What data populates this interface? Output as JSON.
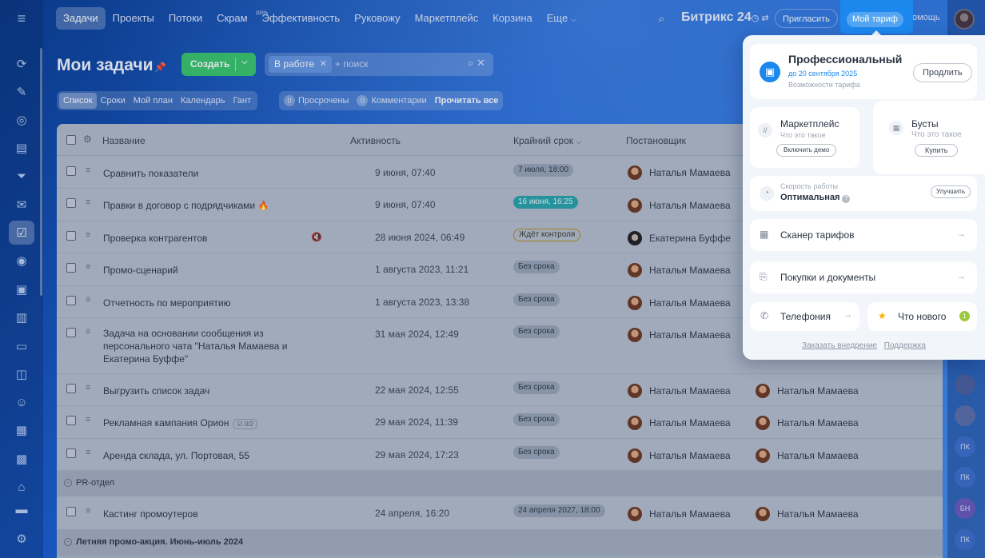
{
  "topnav": {
    "items": [
      "Задачи",
      "Проекты",
      "Потоки",
      "Скрам",
      "Эффективность",
      "Руковожу",
      "Маркетплейс",
      "Корзина",
      "Еще"
    ],
    "efficiency_badge": "100%",
    "brand": "Битрикс 24",
    "invite": "Пригласить",
    "tariff": "Мой тариф",
    "help": "омощь"
  },
  "page": {
    "title": "Мои задачи",
    "create": "Создать",
    "filter_chip": "В работе",
    "search_placeholder": "+ поиск"
  },
  "subtabs": [
    "Список",
    "Сроки",
    "Мой план",
    "Календарь",
    "Гант"
  ],
  "counters": {
    "overdue_count": "0",
    "overdue_label": "Просрочены",
    "comments_count": "0",
    "comments_label": "Комментарии",
    "read_all": "Прочитать все"
  },
  "table": {
    "headers": {
      "name": "Название",
      "activity": "Активность",
      "deadline": "Крайний срок",
      "creator": "Постановщик"
    },
    "rows": [
      {
        "name": "Сравнить показатели",
        "activity": "9 июня, 07:40",
        "deadline": "7 июля, 18:00",
        "creator": "Наталья Мамаева",
        "assignee": ""
      },
      {
        "name": "Правки в договор с подрядчиками",
        "activity": "9 июня, 07:40",
        "deadline": "16 июня, 16:25",
        "creator": "Наталья Мамаева",
        "assignee": ""
      },
      {
        "name": "Проверка контрагентов",
        "activity": "28 июня 2024, 06:49",
        "deadline": "Ждёт контроля",
        "creator": "Екатерина Буффе",
        "assignee": ""
      },
      {
        "name": "Промо-сценарий",
        "activity": "1 августа 2023, 11:21",
        "deadline": "Без срока",
        "creator": "Наталья Мамаева",
        "assignee": ""
      },
      {
        "name": "Отчетность по мероприятию",
        "activity": "1 августа 2023, 13:38",
        "deadline": "Без срока",
        "creator": "Наталья Мамаева",
        "assignee": ""
      },
      {
        "name": "Задача на основании сообщения из персонального чата \"Наталья Мамаева и Екатерина Буффе\"",
        "activity": "31 мая 2024, 12:49",
        "deadline": "Без срока",
        "creator": "Наталья Мамаева",
        "assignee": ""
      },
      {
        "name": "Выгрузить список задач",
        "activity": "22 мая 2024, 12:55",
        "deadline": "Без срока",
        "creator": "Наталья Мамаева",
        "assignee": "Наталья Мамаева"
      },
      {
        "name": "Рекламная кампания Орион",
        "activity": "29 мая 2024, 11:39",
        "deadline": "Без срока",
        "creator": "Наталья Мамаева",
        "assignee": "Наталья Мамаева",
        "checklist": "0/2"
      },
      {
        "name": "Аренда склада, ул. Портовая, 55",
        "activity": "29 мая 2024, 17:23",
        "deadline": "Без срока",
        "creator": "Наталья Мамаева",
        "assignee": "Наталья Мамаева"
      }
    ],
    "group1": "PR-отдел",
    "group1_row": {
      "name": "Кастинг промоутеров",
      "activity": "24 апреля, 16:20",
      "deadline": "24 апреля 2027, 18:00",
      "creator": "Наталья Мамаева",
      "assignee": "Наталья Мамаева"
    },
    "group2": "Летняя промо-акция. Июнь-июль 2024"
  },
  "right_avatars": [
    "ПК",
    "ПК",
    "БН",
    "ПК"
  ],
  "popup": {
    "plan": "Профессиональный",
    "plan_until": "до 20 сентября 2025",
    "plan_options": "Возможности тарифа",
    "prolong": "Продлить",
    "market_title": "Маркетплейс",
    "market_sub": "Что это такое",
    "market_btn": "Включить демо",
    "boost_title": "Бусты",
    "boost_sub": "Что это такое",
    "boost_btn": "Купить",
    "speed_label": "Скорость работы",
    "speed_value": "Оптимальная",
    "improve": "Улучшить",
    "scanner": "Сканер тарифов",
    "purchases": "Покупки и документы",
    "telephony": "Телефония",
    "whats_new": "Что нового",
    "whats_new_count": "1",
    "order_impl": "Заказать внедрение",
    "support": "Поддержка"
  }
}
